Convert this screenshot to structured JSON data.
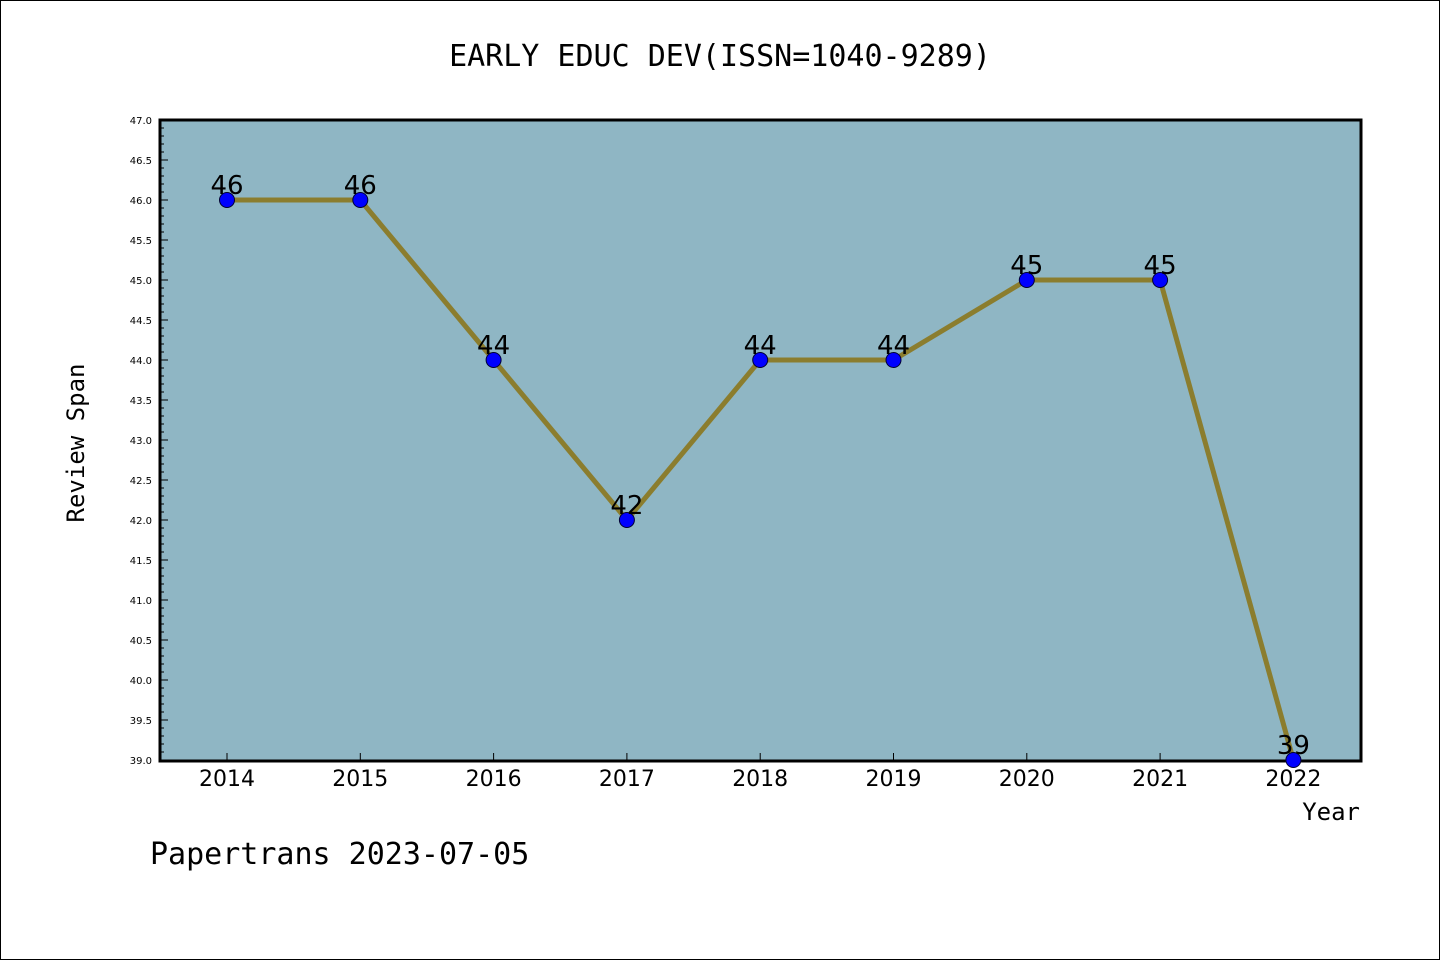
{
  "chart_data": {
    "type": "line",
    "title": "EARLY EDUC DEV(ISSN=1040-9289)",
    "xlabel": "Year",
    "ylabel": "Review Span",
    "categories": [
      "2014",
      "2015",
      "2016",
      "2017",
      "2018",
      "2019",
      "2020",
      "2021",
      "2022"
    ],
    "series": [
      {
        "values": [
          46,
          46,
          44,
          42,
          44,
          44,
          45,
          45,
          39
        ]
      }
    ],
    "ylim": [
      39.0,
      47.0
    ],
    "ytick_step": 0.5,
    "grid": false,
    "colors": {
      "plot_background": "#8fb6c4",
      "line": "#8b7d2e",
      "marker": "#0000ff"
    }
  },
  "footer": "Papertrans 2023-07-05"
}
